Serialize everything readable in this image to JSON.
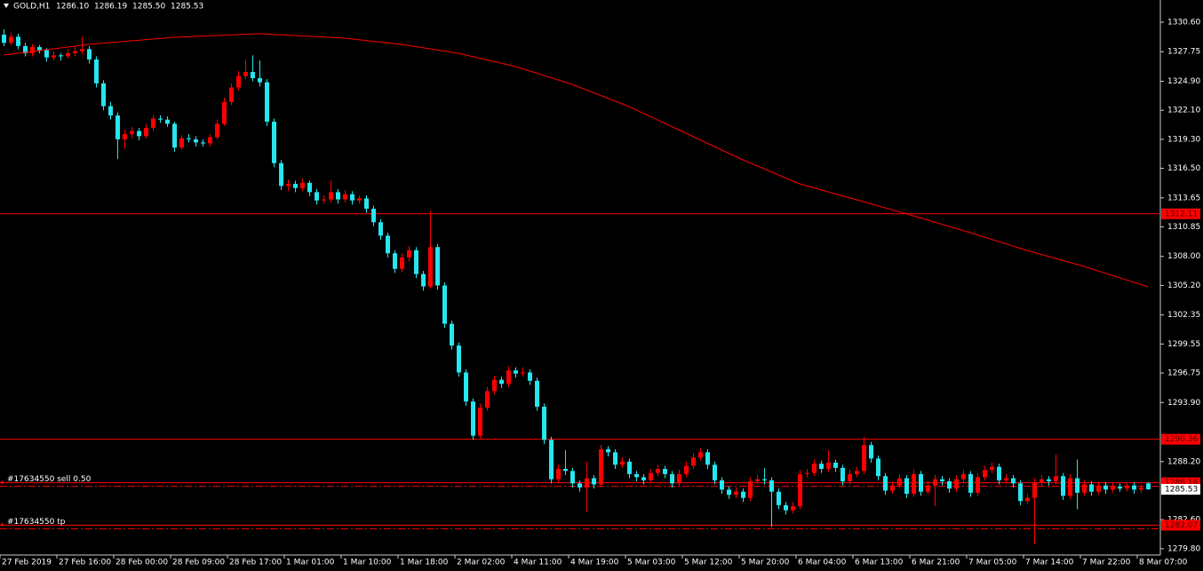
{
  "chart_data": {
    "type": "candlestick",
    "title": "GOLD,H1",
    "ohlc_labels": [
      "1286.10",
      "1286.19",
      "1285.50",
      "1285.53"
    ],
    "up_color": "#ff0000",
    "down_color": "#26e6ee",
    "categories": [
      "27 Feb 2019",
      null,
      null,
      null,
      null,
      null,
      null,
      null,
      "27 Feb 16:00",
      null,
      null,
      null,
      null,
      null,
      null,
      null,
      "28 Feb 00:00",
      null,
      null,
      null,
      null,
      null,
      null,
      null,
      "28 Feb 09:00",
      null,
      null,
      null,
      null,
      null,
      null,
      null,
      "28 Feb 17:00",
      null,
      null,
      null,
      null,
      null,
      null,
      null,
      "1 Mar 01:00",
      null,
      null,
      null,
      null,
      null,
      null,
      null,
      "1 Mar 10:00",
      null,
      null,
      null,
      null,
      null,
      null,
      null,
      "1 Mar 18:00",
      null,
      null,
      null,
      null,
      null,
      null,
      null,
      "2 Mar 02:00",
      null,
      null,
      null,
      null,
      null,
      null,
      null,
      "4 Mar 11:00",
      null,
      null,
      null,
      null,
      null,
      null,
      null,
      "4 Mar 19:00",
      null,
      null,
      null,
      null,
      null,
      null,
      null,
      "5 Mar 03:00",
      null,
      null,
      null,
      null,
      null,
      null,
      null,
      "5 Mar 12:00",
      null,
      null,
      null,
      null,
      null,
      null,
      null,
      "5 Mar 20:00",
      null,
      null,
      null,
      null,
      null,
      null,
      null,
      "6 Mar 04:00",
      null,
      null,
      null,
      null,
      null,
      null,
      null,
      "6 Mar 13:00",
      null,
      null,
      null,
      null,
      null,
      null,
      null,
      "6 Mar 21:00",
      null,
      null,
      null,
      null,
      null,
      null,
      null,
      "7 Mar 05:00",
      null,
      null,
      null,
      null,
      null,
      null,
      null,
      "7 Mar 14:00",
      null,
      null,
      null,
      null,
      null,
      null,
      null,
      "7 Mar 22:00",
      null,
      null,
      null,
      null,
      null,
      null,
      null,
      "8 Mar 07:00",
      null
    ],
    "ohlc": [
      [
        1329.4,
        1329.9,
        1328.3,
        1328.6
      ],
      [
        1328.6,
        1329.6,
        1328.4,
        1329.2
      ],
      [
        1329.2,
        1329.5,
        1328.0,
        1328.3
      ],
      [
        1328.3,
        1328.6,
        1327.3,
        1327.6
      ],
      [
        1327.6,
        1328.5,
        1327.3,
        1328.2
      ],
      [
        1328.2,
        1328.4,
        1327.6,
        1327.9
      ],
      [
        1327.9,
        1328.1,
        1326.8,
        1327.2
      ],
      [
        1327.2,
        1327.8,
        1326.9,
        1327.4
      ],
      [
        1327.4,
        1327.6,
        1326.9,
        1327.3
      ],
      [
        1327.3,
        1328.0,
        1327.1,
        1327.6
      ],
      [
        1327.6,
        1328.3,
        1327.3,
        1327.8
      ],
      [
        1327.8,
        1329.2,
        1327.5,
        1328.0
      ],
      [
        1328.0,
        1328.3,
        1326.6,
        1327.0
      ],
      [
        1327.0,
        1327.3,
        1324.3,
        1324.7
      ],
      [
        1324.7,
        1325.0,
        1322.1,
        1322.5
      ],
      [
        1322.5,
        1322.9,
        1321.2,
        1321.6
      ],
      [
        1321.6,
        1321.9,
        1317.4,
        1319.3
      ],
      [
        1319.3,
        1320.2,
        1318.4,
        1319.8
      ],
      [
        1319.8,
        1320.5,
        1319.4,
        1320.1
      ],
      [
        1320.1,
        1320.4,
        1319.2,
        1319.6
      ],
      [
        1319.6,
        1320.8,
        1319.4,
        1320.4
      ],
      [
        1320.4,
        1321.6,
        1320.1,
        1321.3
      ],
      [
        1321.3,
        1321.6,
        1320.9,
        1321.2
      ],
      [
        1321.2,
        1321.5,
        1320.5,
        1320.8
      ],
      [
        1320.8,
        1321.0,
        1318.1,
        1318.5
      ],
      [
        1318.5,
        1319.7,
        1318.3,
        1319.4
      ],
      [
        1319.4,
        1319.8,
        1319.0,
        1319.3
      ],
      [
        1319.3,
        1319.6,
        1318.6,
        1319.0
      ],
      [
        1319.0,
        1319.3,
        1318.6,
        1318.9
      ],
      [
        1318.9,
        1319.8,
        1318.6,
        1319.5
      ],
      [
        1319.5,
        1321.2,
        1319.3,
        1320.8
      ],
      [
        1320.8,
        1323.3,
        1320.6,
        1322.9
      ],
      [
        1322.9,
        1324.7,
        1322.6,
        1324.3
      ],
      [
        1324.3,
        1325.9,
        1324.0,
        1325.4
      ],
      [
        1325.4,
        1327.0,
        1325.1,
        1325.8
      ],
      [
        1325.8,
        1327.4,
        1324.9,
        1325.2
      ],
      [
        1325.2,
        1326.9,
        1324.4,
        1324.8
      ],
      [
        1324.8,
        1325.1,
        1320.6,
        1321.0
      ],
      [
        1321.0,
        1321.3,
        1316.6,
        1317.0
      ],
      [
        1317.0,
        1317.3,
        1314.4,
        1314.8
      ],
      [
        1314.8,
        1315.4,
        1314.3,
        1315.0
      ],
      [
        1315.0,
        1315.3,
        1314.2,
        1314.6
      ],
      [
        1314.6,
        1315.5,
        1314.3,
        1315.1
      ],
      [
        1315.1,
        1315.3,
        1313.8,
        1314.2
      ],
      [
        1314.2,
        1314.5,
        1313.0,
        1313.4
      ],
      [
        1313.4,
        1313.9,
        1313.1,
        1313.5
      ],
      [
        1313.5,
        1315.3,
        1313.2,
        1314.2
      ],
      [
        1314.2,
        1314.5,
        1313.1,
        1313.5
      ],
      [
        1313.5,
        1314.4,
        1313.2,
        1314.0
      ],
      [
        1314.0,
        1314.3,
        1313.0,
        1313.4
      ],
      [
        1313.4,
        1313.9,
        1313.1,
        1313.6
      ],
      [
        1313.6,
        1313.9,
        1312.2,
        1312.6
      ],
      [
        1312.6,
        1312.9,
        1310.9,
        1311.3
      ],
      [
        1311.3,
        1311.6,
        1309.6,
        1310.0
      ],
      [
        1310.0,
        1310.3,
        1307.9,
        1308.3
      ],
      [
        1308.3,
        1308.6,
        1306.4,
        1306.8
      ],
      [
        1306.8,
        1308.3,
        1306.5,
        1307.9
      ],
      [
        1307.9,
        1309.0,
        1307.5,
        1308.6
      ],
      [
        1308.6,
        1308.9,
        1305.9,
        1306.3
      ],
      [
        1306.3,
        1306.6,
        1304.7,
        1305.1
      ],
      [
        1305.1,
        1312.4,
        1304.9,
        1308.9
      ],
      [
        1308.9,
        1309.2,
        1304.8,
        1305.2
      ],
      [
        1305.2,
        1305.5,
        1301.1,
        1301.5
      ],
      [
        1301.5,
        1301.8,
        1299.0,
        1299.4
      ],
      [
        1299.4,
        1299.7,
        1296.4,
        1296.8
      ],
      [
        1296.8,
        1297.1,
        1293.6,
        1294.0
      ],
      [
        1294.0,
        1294.3,
        1290.3,
        1290.7
      ],
      [
        1290.7,
        1293.8,
        1290.4,
        1293.4
      ],
      [
        1293.4,
        1295.4,
        1293.1,
        1295.0
      ],
      [
        1295.0,
        1296.5,
        1294.7,
        1296.1
      ],
      [
        1296.1,
        1296.4,
        1295.3,
        1295.7
      ],
      [
        1295.7,
        1297.4,
        1295.4,
        1297.0
      ],
      [
        1297.0,
        1297.3,
        1296.3,
        1296.7
      ],
      [
        1296.7,
        1297.3,
        1296.4,
        1296.8
      ],
      [
        1296.8,
        1297.1,
        1295.6,
        1296.0
      ],
      [
        1296.0,
        1296.3,
        1293.1,
        1293.5
      ],
      [
        1293.5,
        1293.8,
        1289.9,
        1290.3
      ],
      [
        1290.3,
        1290.6,
        1286.1,
        1286.5
      ],
      [
        1286.5,
        1287.9,
        1286.2,
        1287.5
      ],
      [
        1287.5,
        1289.3,
        1286.9,
        1287.3
      ],
      [
        1287.3,
        1287.6,
        1285.7,
        1286.1
      ],
      [
        1286.1,
        1286.4,
        1285.3,
        1285.7
      ],
      [
        1285.7,
        1288.2,
        1283.3,
        1286.6
      ],
      [
        1286.6,
        1286.9,
        1285.6,
        1286.0
      ],
      [
        1286.0,
        1289.8,
        1285.7,
        1289.4
      ],
      [
        1289.4,
        1289.7,
        1288.7,
        1289.1
      ],
      [
        1289.1,
        1289.4,
        1287.5,
        1287.9
      ],
      [
        1287.9,
        1288.6,
        1287.6,
        1288.2
      ],
      [
        1288.2,
        1288.5,
        1286.6,
        1287.0
      ],
      [
        1287.0,
        1287.3,
        1286.3,
        1286.7
      ],
      [
        1286.7,
        1287.0,
        1286.0,
        1286.4
      ],
      [
        1286.4,
        1287.5,
        1286.1,
        1287.1
      ],
      [
        1287.1,
        1287.9,
        1286.8,
        1287.5
      ],
      [
        1287.5,
        1287.8,
        1286.6,
        1287.0
      ],
      [
        1287.0,
        1287.3,
        1285.7,
        1286.1
      ],
      [
        1286.1,
        1287.4,
        1285.8,
        1287.0
      ],
      [
        1287.0,
        1288.2,
        1286.7,
        1287.8
      ],
      [
        1287.8,
        1289.0,
        1287.5,
        1288.6
      ],
      [
        1288.6,
        1289.5,
        1288.3,
        1289.1
      ],
      [
        1289.1,
        1289.4,
        1287.5,
        1287.9
      ],
      [
        1287.9,
        1288.2,
        1286.0,
        1286.4
      ],
      [
        1286.4,
        1286.7,
        1285.1,
        1285.5
      ],
      [
        1285.5,
        1285.8,
        1284.6,
        1285.0
      ],
      [
        1285.0,
        1285.7,
        1284.7,
        1285.3
      ],
      [
        1285.3,
        1285.6,
        1284.3,
        1284.7
      ],
      [
        1284.7,
        1286.7,
        1284.4,
        1286.3
      ],
      [
        1286.3,
        1286.9,
        1286.0,
        1286.5
      ],
      [
        1286.5,
        1287.6,
        1286.0,
        1286.4
      ],
      [
        1286.4,
        1286.7,
        1281.9,
        1285.3
      ],
      [
        1285.3,
        1285.6,
        1283.6,
        1284.0
      ],
      [
        1284.0,
        1284.3,
        1283.1,
        1283.5
      ],
      [
        1283.5,
        1284.3,
        1283.2,
        1283.9
      ],
      [
        1283.9,
        1287.4,
        1283.6,
        1287.0
      ],
      [
        1287.0,
        1287.5,
        1286.7,
        1287.1
      ],
      [
        1287.1,
        1288.4,
        1286.8,
        1288.0
      ],
      [
        1288.0,
        1288.3,
        1287.1,
        1287.5
      ],
      [
        1287.5,
        1289.3,
        1287.2,
        1288.1
      ],
      [
        1288.1,
        1288.4,
        1287.2,
        1287.6
      ],
      [
        1287.6,
        1287.9,
        1285.9,
        1286.3
      ],
      [
        1286.3,
        1287.4,
        1286.0,
        1287.0
      ],
      [
        1287.0,
        1287.7,
        1286.7,
        1287.3
      ],
      [
        1287.3,
        1290.6,
        1287.0,
        1289.8
      ],
      [
        1289.8,
        1290.1,
        1288.1,
        1288.5
      ],
      [
        1288.5,
        1288.8,
        1286.4,
        1286.8
      ],
      [
        1286.8,
        1287.1,
        1285.0,
        1285.4
      ],
      [
        1285.4,
        1286.3,
        1285.1,
        1285.9
      ],
      [
        1285.9,
        1287.0,
        1285.6,
        1286.6
      ],
      [
        1286.6,
        1286.9,
        1284.7,
        1285.1
      ],
      [
        1285.1,
        1287.4,
        1284.8,
        1287.0
      ],
      [
        1287.0,
        1287.3,
        1284.9,
        1285.3
      ],
      [
        1285.3,
        1286.3,
        1285.0,
        1285.9
      ],
      [
        1285.9,
        1286.9,
        1283.9,
        1286.5
      ],
      [
        1286.5,
        1286.8,
        1285.9,
        1286.3
      ],
      [
        1286.3,
        1286.6,
        1285.2,
        1285.6
      ],
      [
        1285.6,
        1286.9,
        1285.3,
        1286.5
      ],
      [
        1286.5,
        1287.4,
        1286.2,
        1287.0
      ],
      [
        1287.0,
        1287.3,
        1284.8,
        1285.2
      ],
      [
        1285.2,
        1287.1,
        1284.9,
        1286.7
      ],
      [
        1286.7,
        1287.8,
        1286.4,
        1287.4
      ],
      [
        1287.4,
        1288.1,
        1287.1,
        1287.7
      ],
      [
        1287.7,
        1288.0,
        1286.0,
        1286.4
      ],
      [
        1286.4,
        1287.0,
        1286.1,
        1286.6
      ],
      [
        1286.6,
        1286.9,
        1285.7,
        1286.1
      ],
      [
        1286.1,
        1286.4,
        1284.0,
        1284.4
      ],
      [
        1284.4,
        1285.1,
        1284.1,
        1284.7
      ],
      [
        1284.7,
        1286.6,
        1280.2,
        1286.2
      ],
      [
        1286.2,
        1286.9,
        1285.9,
        1286.5
      ],
      [
        1286.5,
        1286.8,
        1285.9,
        1286.3
      ],
      [
        1286.3,
        1288.9,
        1286.0,
        1286.8
      ],
      [
        1286.8,
        1287.1,
        1284.5,
        1284.9
      ],
      [
        1284.9,
        1287.0,
        1284.6,
        1286.6
      ],
      [
        1286.6,
        1288.4,
        1283.6,
        1285.2
      ],
      [
        1285.2,
        1286.4,
        1284.9,
        1286.0
      ],
      [
        1286.0,
        1286.3,
        1284.9,
        1285.3
      ],
      [
        1285.3,
        1286.3,
        1285.0,
        1285.9
      ],
      [
        1285.9,
        1286.2,
        1285.1,
        1285.5
      ],
      [
        1285.5,
        1286.2,
        1285.2,
        1285.8
      ],
      [
        1285.8,
        1286.1,
        1285.3,
        1285.6
      ],
      [
        1285.6,
        1286.2,
        1285.3,
        1285.9
      ],
      [
        1285.9,
        1286.2,
        1285.1,
        1285.5
      ],
      [
        1285.5,
        1286.0,
        1285.2,
        1285.7
      ],
      [
        1286.1,
        1286.19,
        1285.5,
        1285.53
      ]
    ],
    "ma": {
      "color": "#ff0000",
      "x": [
        0,
        12,
        24,
        36,
        48,
        56,
        64,
        72,
        80,
        88,
        96,
        104,
        112,
        120,
        128,
        136,
        144,
        152,
        161
      ],
      "values": [
        1327.43,
        1328.46,
        1329.14,
        1329.49,
        1329.06,
        1328.46,
        1327.6,
        1326.32,
        1324.6,
        1322.46,
        1319.89,
        1317.32,
        1315.0,
        1313.46,
        1311.92,
        1310.29,
        1308.58,
        1307.04,
        1305.07
      ]
    },
    "levels": [
      {
        "value": 1312.11,
        "color": "#ff0000"
      },
      {
        "value": 1290.36,
        "color": "#ff0000"
      },
      {
        "value": 1286.16,
        "color": "#ff0000",
        "text": "#17634550 sell 0.50"
      },
      {
        "value": 1282.07,
        "color": "#ff0000",
        "text": "#17634550 tp"
      },
      {
        "value": 1285.53,
        "color": "#ffffff"
      }
    ],
    "xlim": [
      -0.5,
      162.75
    ],
    "ylim": [
      1279.19,
      1332.74
    ],
    "yticks": [
      {
        "value": 1330.6,
        "label": "1330.60"
      },
      1327.75,
      {
        "value": 1324.9,
        "label": "1324.90"
      },
      {
        "value": 1322.1,
        "label": "1322.10"
      },
      {
        "value": 1319.3,
        "label": "1319.30"
      },
      {
        "value": 1316.5,
        "label": "1316.50"
      },
      1313.65,
      1310.85,
      {
        "value": 1308,
        "label": "1308.00"
      },
      {
        "value": 1305.2,
        "label": "1305.20"
      },
      1302.35,
      1299.55,
      1296.75,
      {
        "value": 1293.9,
        "label": "1293.90"
      },
      {
        "value": 1288.2,
        "label": "1288.20"
      },
      {
        "value": 1282.6,
        "label": "1282.60"
      },
      {
        "value": 1279.8,
        "label": "1279.80"
      }
    ]
  }
}
